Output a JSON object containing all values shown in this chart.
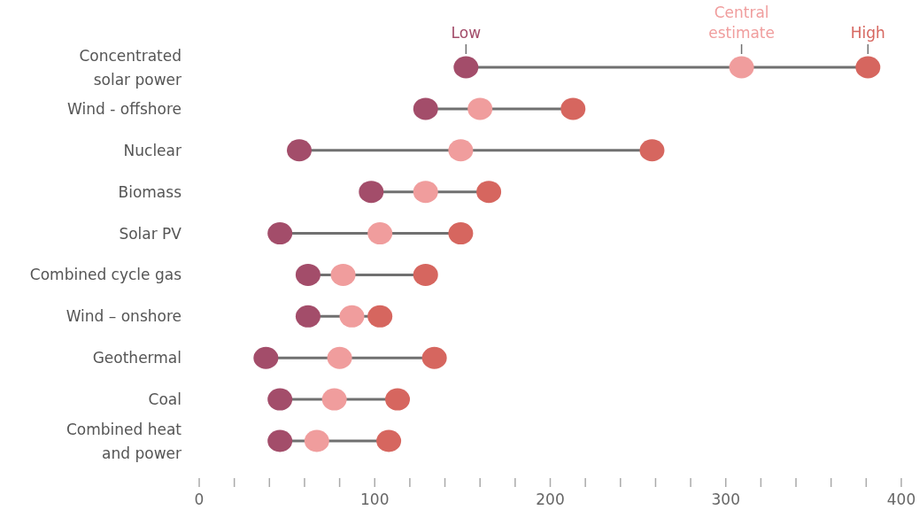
{
  "chart_data": {
    "type": "scatter",
    "orientation": "horizontal",
    "marker": "circle",
    "categories": [
      "Concentrated solar power",
      "Wind - offshore",
      "Nuclear",
      "Biomass",
      "Solar PV",
      "Combined cycle gas",
      "Wind – onshore",
      "Geothermal",
      "Coal",
      "Combined heat and power"
    ],
    "series": [
      {
        "name": "Low",
        "color": "#a34d6a",
        "values": [
          152,
          129,
          57,
          98,
          46,
          62,
          62,
          38,
          46,
          46
        ]
      },
      {
        "name": "Central estimate",
        "color": "#f09d9d",
        "values": [
          309,
          160,
          149,
          129,
          103,
          82,
          87,
          80,
          77,
          67
        ]
      },
      {
        "name": "High",
        "color": "#d6665f",
        "values": [
          381,
          213,
          258,
          165,
          149,
          129,
          103,
          134,
          113,
          108
        ]
      }
    ],
    "xlim": [
      0,
      400
    ],
    "xticks": [
      0,
      {
        "value": 20,
        "label": null
      },
      {
        "value": 40,
        "label": null
      },
      {
        "value": 60,
        "label": null
      },
      {
        "value": 80,
        "label": null
      },
      100,
      {
        "value": 120,
        "label": null
      },
      {
        "value": 140,
        "label": null
      },
      {
        "value": 160,
        "label": null
      },
      {
        "value": 180,
        "label": null
      },
      200,
      {
        "value": 220,
        "label": null
      },
      {
        "value": 240,
        "label": null
      },
      {
        "value": 260,
        "label": null
      },
      {
        "value": 280,
        "label": null
      },
      300,
      {
        "value": 320,
        "label": null
      },
      {
        "value": 340,
        "label": null
      },
      {
        "value": 360,
        "label": null
      },
      {
        "value": 380,
        "label": null
      },
      400
    ],
    "grid": false
  }
}
